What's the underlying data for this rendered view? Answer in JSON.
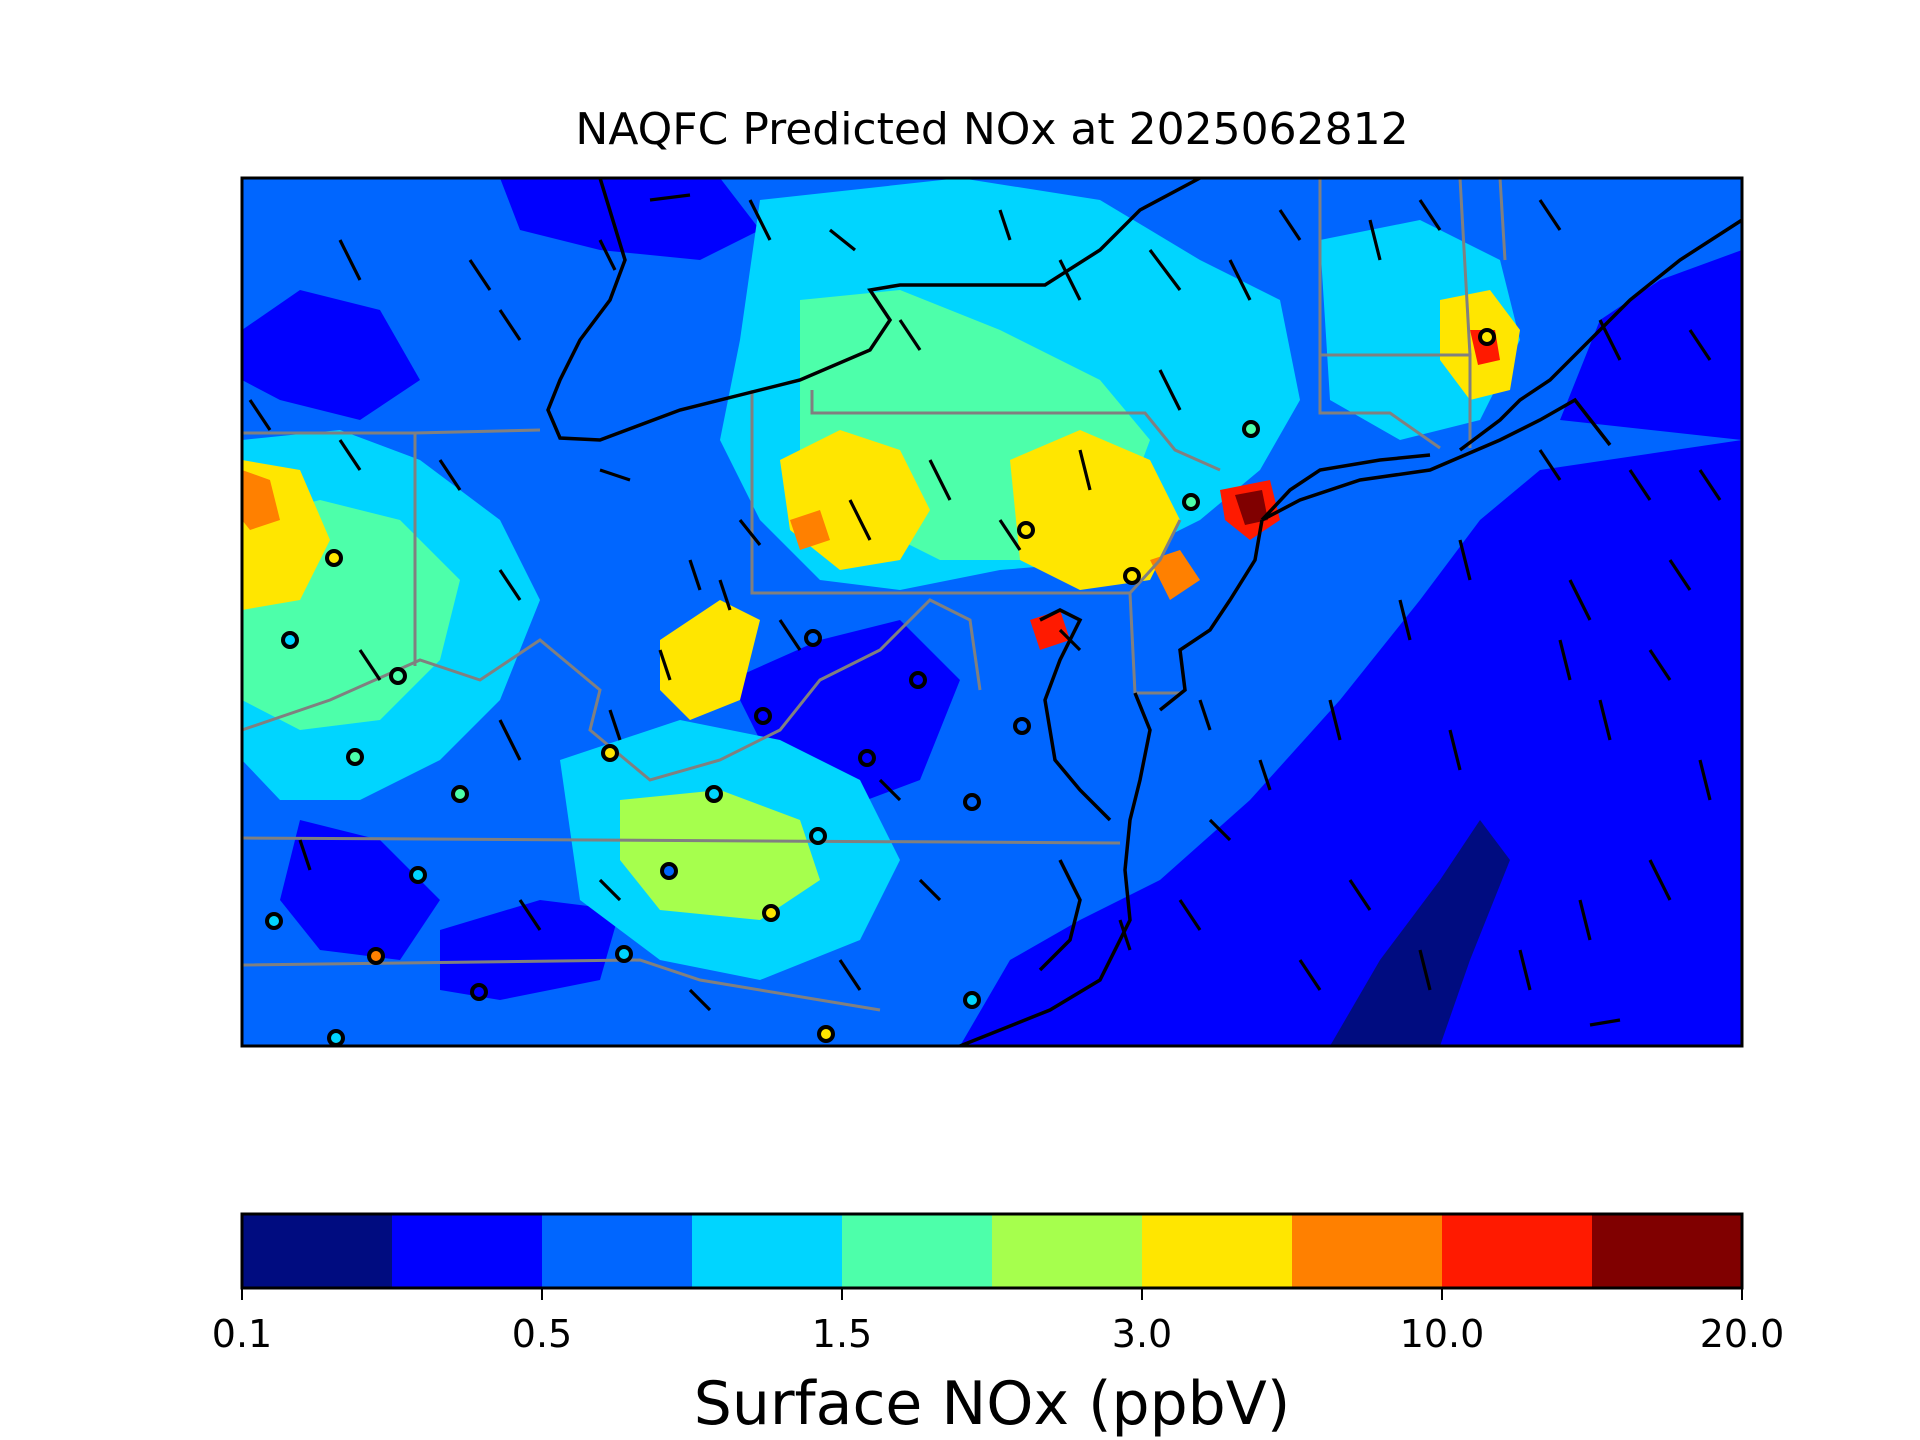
{
  "title": "NAQFC Predicted NOx at 2025062812",
  "colorbar": {
    "label": "Surface NOx (ppbV)",
    "bins": [
      {
        "color": "#000c80"
      },
      {
        "color": "#0000ff"
      },
      {
        "color": "#0066ff"
      },
      {
        "color": "#00d5ff"
      },
      {
        "color": "#4dffaa"
      },
      {
        "color": "#a6ff4d"
      },
      {
        "color": "#ffe600"
      },
      {
        "color": "#ff8000"
      },
      {
        "color": "#ff1a00"
      },
      {
        "color": "#800000"
      }
    ],
    "tick_labels": [
      "0.1",
      "0.5",
      "1.5",
      "3.0",
      "10.0",
      "20.0"
    ]
  },
  "legend_colors": {
    "coastline": "#000000",
    "state_borders": "#808080",
    "wind_barbs": "#000000",
    "monitor_markers": "#000000"
  }
}
